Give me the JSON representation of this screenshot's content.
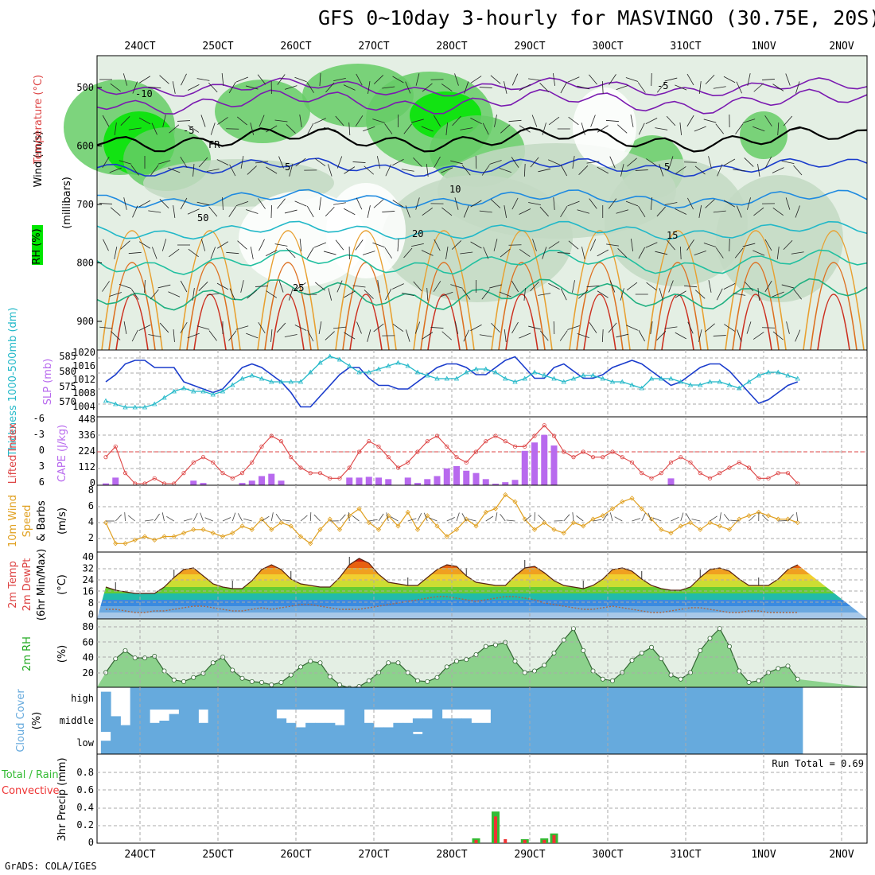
{
  "header": {
    "title": "GFS 0~10day 3-hourly for MASVINGO (30.75E, 20S)",
    "credit": "GrADS: COLA/IGES"
  },
  "colors": {
    "rh_dark": "#00e600",
    "rh_mid": "#66cc66",
    "rh_light": "#c3d9c3",
    "wind_blue": "#1a3ccc",
    "thick_cyan": "#22b8c8",
    "cape": "#b86aee",
    "lifted": "#dd4444",
    "wind10": "#e0a020",
    "rh2m": "#22aa22",
    "cloud": "#66aadd",
    "precip_total": "#33bb33",
    "precip_conv": "#ee3333"
  },
  "chart_data": [
    {
      "type": "heatmap",
      "panel": "upper-air",
      "title": "Temperature / RH / Wind cross-section",
      "ylabel": "(millibars)",
      "legend": [
        "RH (%)",
        "Temperature (°C)",
        "Wind (m/s)"
      ],
      "y_ticks": [
        "500",
        "600",
        "700",
        "800",
        "900"
      ],
      "contour_labels": [
        "-10",
        "-5",
        "FR",
        "5",
        "10",
        "20",
        "15",
        "25",
        "50",
        "-5",
        "5"
      ],
      "x_ticks": [
        "24OCT",
        "25OCT",
        "26OCT",
        "27OCT",
        "28OCT",
        "29OCT",
        "30OCT",
        "31OCT",
        "1NOV",
        "2NOV"
      ]
    },
    {
      "type": "line",
      "panel": "thickness-slp",
      "ylabel_left": "Thickness 1000-500mb (dm)",
      "ylabel_right": "SLP (mb)",
      "y_ticks_left": [
        "585",
        "580",
        "575",
        "570"
      ],
      "y_ticks_right": [
        "1020",
        "1016",
        "1012",
        "1008",
        "1004"
      ],
      "ylim_left": [
        568,
        586
      ],
      "ylim_right": [
        1004,
        1020
      ],
      "series": [
        {
          "name": "SLP (mb)",
          "values": [
            1012,
            1014,
            1017,
            1018,
            1018,
            1016,
            1016,
            1016,
            1012,
            1011,
            1010,
            1009,
            1010,
            1013,
            1016,
            1017,
            1016,
            1014,
            1012,
            1009,
            1005,
            1005,
            1008,
            1011,
            1014,
            1016,
            1016,
            1013,
            1011,
            1011,
            1010,
            1010,
            1012,
            1014,
            1016,
            1017,
            1017,
            1016,
            1014,
            1014,
            1016,
            1018,
            1019,
            1016,
            1013,
            1013,
            1016,
            1017,
            1015,
            1013,
            1013,
            1014,
            1016,
            1017,
            1018,
            1017,
            1015,
            1013,
            1011,
            1012,
            1014,
            1016,
            1017,
            1017,
            1015,
            1012,
            1009,
            1006,
            1007,
            1009,
            1011,
            1012
          ]
        },
        {
          "name": "Thickness (dm)",
          "values": [
            571,
            570,
            569,
            569,
            569,
            570,
            572,
            574,
            575,
            574,
            574,
            573,
            574,
            576,
            578,
            579,
            578,
            577,
            577,
            577,
            577,
            580,
            583,
            585,
            584,
            582,
            580,
            580,
            581,
            582,
            583,
            582,
            580,
            579,
            578,
            578,
            578,
            580,
            581,
            581,
            580,
            578,
            577,
            578,
            580,
            579,
            578,
            577,
            578,
            579,
            579,
            578,
            577,
            577,
            576,
            575,
            578,
            578,
            578,
            577,
            576,
            576,
            577,
            577,
            576,
            575,
            577,
            579,
            580,
            580,
            579,
            578
          ]
        }
      ]
    },
    {
      "type": "bar",
      "panel": "cape-lifted-index",
      "ylabel_left": "Lifted Index",
      "ylabel_right": "CAPE (J/kg)",
      "y_ticks_left": [
        "-6",
        "-3",
        "0",
        "3",
        "6"
      ],
      "y_ticks_right": [
        "448",
        "336",
        "224",
        "112",
        "0"
      ],
      "ylim_cape": [
        0,
        448
      ],
      "series": [
        {
          "name": "CAPE (J/kg)",
          "values": [
            12,
            50,
            0,
            0,
            0,
            0,
            0,
            0,
            0,
            30,
            15,
            0,
            0,
            0,
            15,
            30,
            60,
            75,
            30,
            0,
            0,
            0,
            0,
            0,
            0,
            50,
            50,
            55,
            50,
            40,
            0,
            50,
            15,
            40,
            60,
            110,
            125,
            95,
            80,
            40,
            10,
            20,
            35,
            225,
            280,
            330,
            260,
            0,
            0,
            0,
            0,
            0,
            0,
            0,
            0,
            0,
            0,
            0,
            45,
            0,
            0,
            0,
            0,
            0,
            0,
            0,
            0,
            0,
            0,
            0,
            0,
            0
          ]
        },
        {
          "name": "Lifted Index",
          "values": [
            1,
            -1,
            4,
            6,
            6,
            5,
            6,
            6,
            4,
            2,
            1,
            2,
            4,
            5,
            4,
            2,
            -1,
            -3,
            -2,
            1,
            3,
            4,
            4,
            5,
            5,
            3,
            0,
            -2,
            -1,
            1,
            3,
            2,
            0,
            -2,
            -3,
            -1,
            1,
            2,
            0,
            -2,
            -3,
            -2,
            -1,
            -1,
            -3,
            -5,
            -3,
            0,
            1,
            0,
            1,
            1,
            0,
            1,
            2,
            4,
            5,
            4,
            2,
            1,
            2,
            4,
            5,
            4,
            3,
            2,
            3,
            5,
            5,
            4,
            4,
            6
          ]
        }
      ]
    },
    {
      "type": "line",
      "panel": "10m-wind",
      "ylabel": "10m Wind Speed (m/s) & Barbs",
      "y_ticks": [
        "8",
        "6",
        "4",
        "2"
      ],
      "ylim": [
        0,
        8
      ],
      "series": [
        {
          "name": "10m Wind Speed (m/s)",
          "values": [
            4,
            1,
            1,
            1.5,
            2,
            1.5,
            2,
            2,
            2.5,
            3,
            3,
            2.5,
            2,
            2.5,
            3.5,
            3,
            4.5,
            3,
            4,
            3.5,
            2,
            1,
            3,
            4.5,
            3,
            5,
            6,
            4,
            3,
            5,
            3.5,
            5.5,
            3,
            5,
            3.5,
            2,
            3,
            4.5,
            3.5,
            5.5,
            6,
            8,
            7,
            4.5,
            3,
            4,
            3,
            2.5,
            4,
            3.5,
            4.5,
            5,
            6,
            7,
            7.5,
            6,
            4.5,
            3,
            2.5,
            3.5,
            4,
            3,
            4,
            3.5,
            3,
            4.5,
            5,
            5.5,
            5,
            4.5,
            4.5,
            4
          ]
        }
      ]
    },
    {
      "type": "area",
      "panel": "2m-temp",
      "ylabel": "2m Temp / 2m DewPt (6hr Min/Max) (°C)",
      "y_ticks": [
        "40",
        "32",
        "24",
        "16",
        "8",
        "0"
      ],
      "ylim": [
        0,
        40
      ],
      "series": [
        {
          "name": "2m Temp (°C)",
          "values": [
            20,
            18,
            17,
            16,
            16,
            16,
            20,
            26,
            31,
            32,
            27,
            22,
            20,
            19,
            19,
            24,
            31,
            34,
            31,
            25,
            22,
            21,
            20,
            20,
            26,
            34,
            38,
            35,
            28,
            23,
            22,
            21,
            21,
            26,
            31,
            34,
            33,
            27,
            23,
            22,
            21,
            21,
            27,
            32,
            33,
            29,
            24,
            21,
            20,
            19,
            21,
            25,
            31,
            32,
            30,
            25,
            21,
            19,
            18,
            18,
            20,
            26,
            31,
            32,
            30,
            25,
            21,
            21,
            21,
            25,
            31,
            34
          ]
        },
        {
          "name": "2m DewPt (°C)",
          "values": [
            6,
            6,
            5,
            4,
            4,
            5,
            5,
            6,
            7,
            8,
            8,
            7,
            6,
            5,
            5,
            6,
            7,
            6,
            7,
            8,
            9,
            9,
            8,
            7,
            6,
            6,
            6,
            7,
            8,
            9,
            10,
            11,
            12,
            13,
            14,
            14,
            13,
            12,
            11,
            12,
            13,
            14,
            14,
            13,
            12,
            10,
            9,
            8,
            7,
            6,
            6,
            7,
            8,
            7,
            6,
            5,
            4,
            4,
            5,
            6,
            7,
            7,
            6,
            5,
            4,
            4,
            5,
            5,
            4,
            4,
            4,
            4
          ]
        }
      ]
    },
    {
      "type": "area",
      "panel": "2m-rh",
      "ylabel": "2m RH (%)",
      "y_ticks": [
        "80",
        "60",
        "40",
        "20"
      ],
      "ylim": [
        10,
        90
      ],
      "series": [
        {
          "name": "2m RH (%)",
          "values": [
            28,
            45,
            55,
            46,
            46,
            48,
            30,
            19,
            17,
            22,
            27,
            40,
            47,
            31,
            21,
            17,
            16,
            13,
            16,
            25,
            35,
            42,
            40,
            23,
            13,
            9,
            11,
            18,
            28,
            40,
            40,
            28,
            18,
            17,
            22,
            35,
            42,
            44,
            50,
            60,
            62,
            65,
            42,
            28,
            30,
            37,
            52,
            68,
            82,
            55,
            30,
            20,
            18,
            28,
            43,
            52,
            59,
            45,
            25,
            20,
            28,
            55,
            70,
            82,
            60,
            30,
            16,
            18,
            28,
            33,
            36,
            20
          ]
        }
      ]
    },
    {
      "type": "bar",
      "panel": "cloud-cover",
      "ylabel": "Cloud Cover (%)",
      "y_ticks": [
        "high",
        "middle",
        "low"
      ],
      "series": [
        {
          "name": "high (%)",
          "values": [
            80,
            0,
            0,
            100,
            100,
            100,
            100,
            100,
            100,
            100,
            100,
            100,
            100,
            100,
            100,
            100,
            100,
            100,
            100,
            100,
            100,
            100,
            100,
            100,
            100,
            100,
            100,
            100,
            100,
            100,
            100,
            100,
            100,
            100,
            100,
            100,
            100,
            100,
            100,
            100,
            100,
            100,
            100,
            100,
            100,
            100,
            100,
            100,
            100,
            100,
            100,
            100,
            100,
            100,
            100,
            100,
            100,
            100,
            100,
            100,
            100,
            100,
            100,
            100,
            100,
            100,
            100,
            100,
            100,
            100,
            100,
            100
          ]
        },
        {
          "name": "middle (%)",
          "values": [
            100,
            70,
            30,
            100,
            100,
            40,
            50,
            80,
            100,
            100,
            40,
            100,
            100,
            100,
            100,
            100,
            100,
            100,
            60,
            40,
            20,
            40,
            40,
            40,
            30,
            100,
            100,
            40,
            20,
            20,
            40,
            40,
            60,
            60,
            100,
            60,
            60,
            60,
            40,
            40,
            100,
            100,
            100,
            100,
            100,
            100,
            100,
            100,
            100,
            100,
            100,
            100,
            100,
            100,
            100,
            100,
            100,
            100,
            100,
            100,
            100,
            100,
            100,
            100,
            100,
            100,
            100,
            100,
            100,
            100,
            100,
            100
          ]
        },
        {
          "name": "low (%)",
          "values": [
            60,
            100,
            100,
            100,
            100,
            100,
            100,
            100,
            100,
            100,
            100,
            100,
            100,
            100,
            100,
            100,
            100,
            100,
            100,
            100,
            100,
            100,
            100,
            100,
            100,
            100,
            100,
            100,
            100,
            100,
            100,
            100,
            90,
            100,
            100,
            100,
            100,
            100,
            100,
            100,
            100,
            100,
            100,
            100,
            100,
            100,
            100,
            100,
            100,
            100,
            100,
            100,
            100,
            100,
            100,
            100,
            100,
            100,
            100,
            100,
            100,
            100,
            100,
            100,
            100,
            100,
            100,
            100,
            100,
            100,
            100,
            100
          ]
        }
      ]
    },
    {
      "type": "bar",
      "panel": "precip",
      "ylabel": "3hr Precip (mm)",
      "legend": [
        "Total / Rain",
        "Convective"
      ],
      "annotation": "Run Total = 0.69",
      "y_ticks": [
        "0.8",
        "0.6",
        "0.4",
        "0.2",
        "0"
      ],
      "ylim": [
        0,
        1.0
      ],
      "x_ticks": [
        "24OCT",
        "25OCT",
        "26OCT",
        "27OCT",
        "28OCT",
        "29OCT",
        "30OCT",
        "31OCT",
        "1NOV",
        "2NOV"
      ],
      "series": [
        {
          "name": "Total / Rain (mm)",
          "values": [
            0,
            0,
            0,
            0,
            0,
            0,
            0,
            0,
            0,
            0,
            0,
            0,
            0,
            0,
            0,
            0,
            0,
            0,
            0,
            0,
            0,
            0,
            0,
            0,
            0,
            0,
            0,
            0,
            0,
            0,
            0,
            0,
            0,
            0,
            0,
            0,
            0,
            0,
            0.06,
            0,
            0.39,
            0,
            0,
            0.05,
            0,
            0.06,
            0.12,
            0,
            0,
            0,
            0,
            0,
            0,
            0,
            0,
            0,
            0,
            0,
            0,
            0,
            0,
            0,
            0,
            0,
            0,
            0,
            0,
            0,
            0,
            0,
            0,
            0
          ]
        },
        {
          "name": "Convective (mm)",
          "values": [
            0,
            0,
            0,
            0,
            0,
            0,
            0,
            0,
            0,
            0,
            0,
            0,
            0,
            0,
            0,
            0,
            0,
            0,
            0,
            0,
            0,
            0,
            0,
            0,
            0,
            0,
            0,
            0,
            0,
            0,
            0,
            0,
            0,
            0,
            0,
            0,
            0,
            0,
            0.04,
            0,
            0.33,
            0.05,
            0,
            0.04,
            0,
            0.04,
            0.1,
            0,
            0,
            0,
            0,
            0,
            0,
            0,
            0,
            0,
            0,
            0,
            0,
            0,
            0,
            0,
            0,
            0,
            0,
            0,
            0,
            0,
            0,
            0,
            0,
            0
          ]
        }
      ]
    }
  ]
}
